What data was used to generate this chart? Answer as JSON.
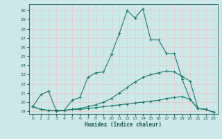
{
  "xlabel": "Humidex (Indice chaleur)",
  "bg_color": "#cce8e8",
  "grid_color": "#e8c8c8",
  "line_color": "#1a7a6e",
  "tick_color": "#1a5a5a",
  "xlim": [
    -0.5,
    23.5
  ],
  "ylim": [
    18.7,
    30.7
  ],
  "xticks": [
    0,
    1,
    2,
    3,
    4,
    5,
    6,
    7,
    8,
    9,
    10,
    11,
    12,
    13,
    14,
    15,
    16,
    17,
    18,
    19,
    20,
    21,
    22,
    23
  ],
  "yticks": [
    19,
    20,
    21,
    22,
    23,
    24,
    25,
    26,
    27,
    28,
    29,
    30
  ],
  "line1_y": [
    19.5,
    20.8,
    21.2,
    19.0,
    19.1,
    20.2,
    20.5,
    22.7,
    23.2,
    23.3,
    25.2,
    27.5,
    30.0,
    29.2,
    30.2,
    26.8,
    26.8,
    25.3,
    25.3,
    22.5,
    20.3,
    19.3,
    19.2,
    18.9
  ],
  "line2_y": [
    19.5,
    19.2,
    19.1,
    19.1,
    19.1,
    19.2,
    19.3,
    19.5,
    19.7,
    20.0,
    20.4,
    21.0,
    21.6,
    22.2,
    22.7,
    23.0,
    23.2,
    23.4,
    23.3,
    22.8,
    22.3,
    19.3,
    19.2,
    18.9
  ],
  "line3_y": [
    19.5,
    19.2,
    19.1,
    19.1,
    19.1,
    19.2,
    19.2,
    19.3,
    19.4,
    19.5,
    19.6,
    19.7,
    19.8,
    19.9,
    20.0,
    20.1,
    20.2,
    20.4,
    20.5,
    20.6,
    20.3,
    19.3,
    19.2,
    18.9
  ]
}
